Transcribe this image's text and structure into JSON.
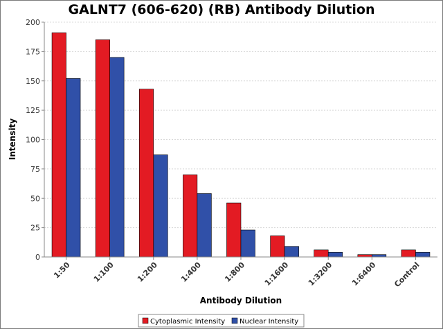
{
  "chart_data": {
    "type": "bar",
    "title": "GALNT7 (606-620) (RB) Antibody Dilution",
    "xlabel": "Antibody Dilution",
    "ylabel": "Intensity",
    "categories": [
      "1:50",
      "1:100",
      "1:200",
      "1:400",
      "1:800",
      "1:1600",
      "1:3200",
      "1:6400",
      "Control"
    ],
    "series": [
      {
        "name": "Cytoplasmic Intensity",
        "color": "#e31b23",
        "values": [
          191,
          185,
          143,
          70,
          46,
          18,
          6,
          2,
          6
        ]
      },
      {
        "name": "Nuclear Intensity",
        "color": "#3050a8",
        "values": [
          152,
          170,
          87,
          54,
          23,
          9,
          4,
          2,
          4
        ]
      }
    ],
    "ylim": [
      0,
      200
    ],
    "yticks": [
      0,
      25,
      50,
      75,
      100,
      125,
      150,
      175,
      200
    ],
    "grid": true,
    "legend_position": "bottom"
  }
}
